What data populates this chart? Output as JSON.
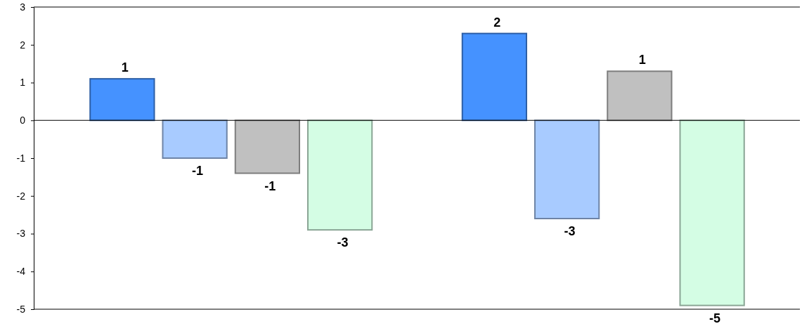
{
  "chart_data": {
    "type": "bar",
    "categories": [
      null,
      null
    ],
    "series": [
      {
        "color": "#4592ff",
        "values": [
          1.1,
          2.3
        ],
        "value_labels": [
          "1",
          "2"
        ]
      },
      {
        "color": "#a8cbff",
        "values": [
          -1,
          -2.6
        ],
        "value_labels": [
          "-1",
          "-3"
        ]
      },
      {
        "color": "#c0c0c0",
        "values": [
          -1.4,
          1.3
        ],
        "value_labels": [
          "-1",
          "1"
        ]
      },
      {
        "color": "#d4fde4",
        "values": [
          -2.9,
          -4.9
        ],
        "value_labels": [
          "-3",
          "-5"
        ]
      }
    ],
    "ylim": [
      -5,
      3
    ],
    "yticks": [
      -5,
      -4,
      -3,
      -2,
      -1,
      0,
      1,
      2,
      3
    ],
    "tick_labels": "y"
  }
}
